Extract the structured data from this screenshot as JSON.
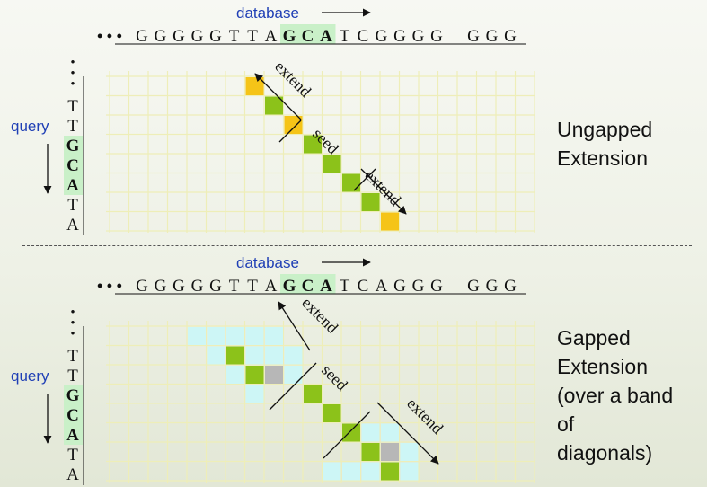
{
  "colors": {
    "label_blue": "#1f3fb5",
    "highlight_green": "#c9f0c8",
    "seed_cell": "#8cc21a",
    "extend_cell": "#f5c418",
    "band_cell": "#cdf6f6",
    "gap_cell": "#b7b7b7",
    "grid_line": "#eeeeb8"
  },
  "panels": [
    {
      "id": "ungapped",
      "database_label": "database",
      "db_prefix": "• • •",
      "db_seq": [
        "G",
        "G",
        "G",
        "G",
        "G",
        "T",
        "T",
        "A",
        "G",
        "C",
        "A",
        "T",
        "C",
        "G",
        "G",
        "G",
        "G",
        "",
        "G",
        "G",
        "G"
      ],
      "db_highlight": [
        8,
        9,
        10
      ],
      "query_label": "query",
      "query_seq": [
        "•",
        "•",
        "•",
        "T",
        "T",
        "G",
        "C",
        "A",
        "T",
        "A"
      ],
      "query_highlight": [
        5,
        6,
        7
      ],
      "seed_label": "seed",
      "extend_labels": [
        "extend",
        "extend"
      ],
      "title": "Ungapped\nExtension"
    },
    {
      "id": "gapped",
      "database_label": "database",
      "db_prefix": "• • •",
      "db_seq": [
        "G",
        "G",
        "G",
        "G",
        "G",
        "T",
        "T",
        "A",
        "G",
        "C",
        "A",
        "T",
        "C",
        "A",
        "G",
        "G",
        "G",
        "",
        "G",
        "G",
        "G"
      ],
      "db_highlight": [
        8,
        9,
        10
      ],
      "query_label": "query",
      "query_seq": [
        "•",
        "•",
        "•",
        "T",
        "T",
        "G",
        "C",
        "A",
        "T",
        "A"
      ],
      "query_highlight": [
        5,
        6,
        7
      ],
      "seed_label": "seed",
      "extend_labels": [
        "extend",
        "extend"
      ],
      "title": "Gapped\nExtension\n(over a band\nof\ndiagonals)"
    }
  ]
}
